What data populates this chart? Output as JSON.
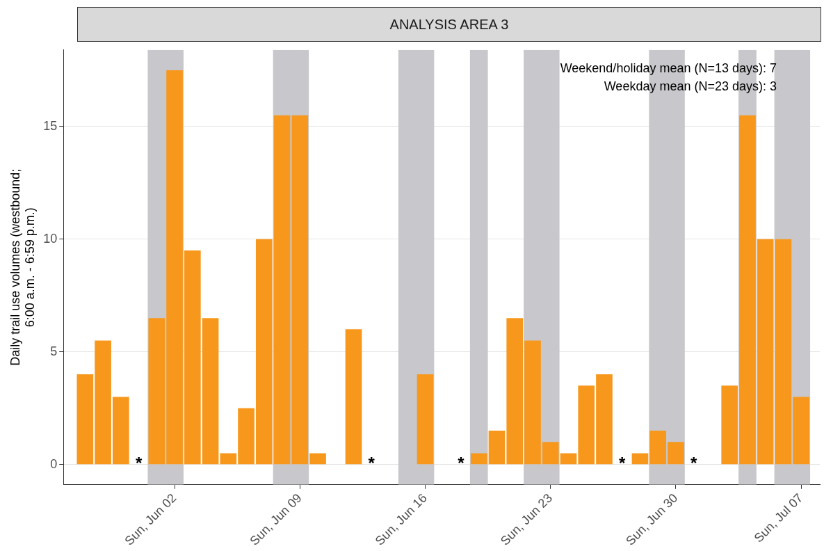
{
  "chart_data": {
    "type": "bar",
    "title": "ANALYSIS AREA 3",
    "ylabel": "Daily trail use volumes (westbound;\n6:00 a.m. - 6:59 p.m.)",
    "x": [
      "--05-28",
      "--05-29",
      "--05-30",
      "--05-31",
      "--06-01",
      "--06-02",
      "--06-03",
      "--06-04",
      "--06-05",
      "--06-06",
      "--06-07",
      "--06-08",
      "--06-09",
      "--06-10",
      "--06-11",
      "--06-12",
      "--06-13",
      "--06-14",
      "--06-15",
      "--06-16",
      "--06-17",
      "--06-18",
      "--06-19",
      "--06-20",
      "--06-21",
      "--06-22",
      "--06-23",
      "--06-24",
      "--06-25",
      "--06-26",
      "--06-27",
      "--06-28",
      "--06-29",
      "--06-30",
      "--07-01",
      "--07-02",
      "--07-03",
      "--07-04",
      "--07-05",
      "--07-06",
      "--07-07"
    ],
    "values": [
      4,
      5.5,
      3,
      null,
      6.5,
      17.5,
      9.5,
      6.5,
      0.5,
      2.5,
      10,
      15.5,
      15.5,
      0.5,
      0,
      6,
      null,
      0,
      0,
      4,
      0,
      null,
      0.5,
      1.5,
      6.5,
      5.5,
      1,
      0.5,
      3.5,
      4,
      null,
      0.5,
      1.5,
      1,
      null,
      0,
      3.5,
      15.5,
      10,
      10,
      3
    ],
    "value_labels": [
      null,
      null,
      null,
      "*",
      null,
      null,
      null,
      null,
      null,
      null,
      null,
      null,
      null,
      null,
      null,
      null,
      "*",
      null,
      null,
      null,
      null,
      "*",
      null,
      null,
      null,
      null,
      null,
      null,
      null,
      null,
      "*",
      null,
      null,
      null,
      "*",
      null,
      null,
      null,
      null,
      null,
      null
    ],
    "color": "#f7981d",
    "xlim": [
      "--05-26T19:00",
      "--07-08T01:00"
    ],
    "xticks": [
      {
        "value": "--06-02",
        "label": "Sun, Jun 02"
      },
      {
        "value": "--06-09",
        "label": "Sun, Jun 09"
      },
      {
        "value": "--06-16",
        "label": "Sun, Jun 16"
      },
      {
        "value": "--06-23",
        "label": "Sun, Jun 23"
      },
      {
        "value": "--06-30",
        "label": "Sun, Jun 30"
      },
      {
        "value": "--07-07",
        "label": "Sun, Jul 07"
      }
    ],
    "ylim": [
      -0.9,
      18.4
    ],
    "yticks": [
      0,
      5,
      10,
      15
    ],
    "grid": true,
    "legend": false,
    "bands": [
      {
        "axis": "x",
        "from": "--05-31T12:00",
        "to": "--06-02T12:00",
        "color": "#c8c8cc"
      },
      {
        "axis": "x",
        "from": "--06-07T12:00",
        "to": "--06-09T12:00",
        "color": "#c8c8cc"
      },
      {
        "axis": "x",
        "from": "--06-14T12:00",
        "to": "--06-16T12:00",
        "color": "#c8c8cc"
      },
      {
        "axis": "x",
        "from": "--06-18T12:00",
        "to": "--06-19T12:00",
        "color": "#c8c8cc"
      },
      {
        "axis": "x",
        "from": "--06-21T12:00",
        "to": "--06-23T12:00",
        "color": "#c8c8cc"
      },
      {
        "axis": "x",
        "from": "--06-28T12:00",
        "to": "--06-30T12:00",
        "color": "#c8c8cc"
      },
      {
        "axis": "x",
        "from": "--07-03T12:00",
        "to": "--07-04T12:00",
        "color": "#c8c8cc"
      },
      {
        "axis": "x",
        "from": "--07-05T12:00",
        "to": "--07-07T12:00",
        "color": "#c8c8cc"
      }
    ],
    "annotations": [
      "Weekend/holiday mean (N=13 days): 7",
      "Weekday mean (N=23 days): 3"
    ]
  }
}
